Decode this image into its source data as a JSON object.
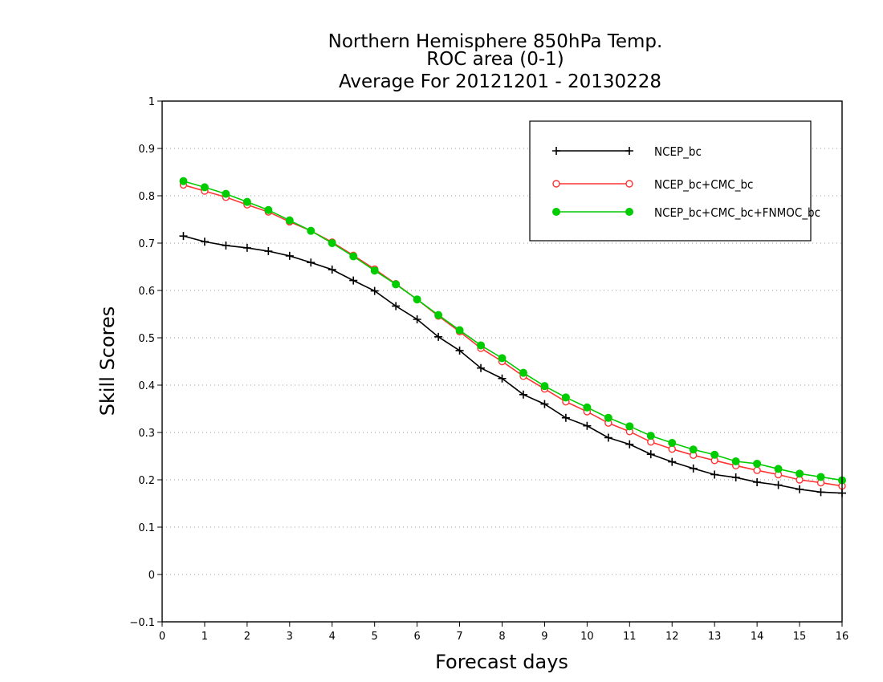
{
  "chart_data": {
    "type": "line",
    "title_lines": [
      "Northern Hemisphere 850hPa Temp.",
      "ROC area (0-1)",
      "Average For 20121201 - 20130228"
    ],
    "xlabel": "Forecast days",
    "ylabel": "Skill Scores",
    "xlim": [
      0,
      16
    ],
    "ylim": [
      -0.1,
      1
    ],
    "x_ticks": [
      "0",
      "1",
      "2",
      "3",
      "4",
      "5",
      "6",
      "7",
      "8",
      "9",
      "10",
      "11",
      "12",
      "13",
      "14",
      "15",
      "16"
    ],
    "y_ticks": [
      "−0.1",
      "0",
      "0.1",
      "0.2",
      "0.3",
      "0.4",
      "0.5",
      "0.6",
      "0.7",
      "0.8",
      "0.9",
      "1"
    ],
    "grid": "horizontal dotted",
    "legend_position": "top-right",
    "x": [
      0.5,
      1,
      1.5,
      2,
      2.5,
      3,
      3.5,
      4,
      4.5,
      5,
      5.5,
      6,
      6.5,
      7,
      7.5,
      8,
      8.5,
      9,
      9.5,
      10,
      10.5,
      11,
      11.5,
      12,
      12.5,
      13,
      13.5,
      14,
      14.5,
      15,
      15.5,
      16
    ],
    "series": [
      {
        "name": "NCEP_bc",
        "color": "#000000",
        "marker": "plus",
        "values": [
          0.715,
          0.703,
          0.695,
          0.69,
          0.683,
          0.673,
          0.659,
          0.644,
          0.621,
          0.599,
          0.567,
          0.539,
          0.502,
          0.473,
          0.436,
          0.414,
          0.38,
          0.36,
          0.331,
          0.314,
          0.289,
          0.275,
          0.254,
          0.238,
          0.224,
          0.211,
          0.205,
          0.195,
          0.189,
          0.18,
          0.174,
          0.172
        ]
      },
      {
        "name": "NCEP_bc+CMC_bc",
        "color": "#ff3333",
        "marker": "open-circle",
        "values": [
          0.823,
          0.81,
          0.797,
          0.781,
          0.766,
          0.745,
          0.726,
          0.702,
          0.674,
          0.645,
          0.614,
          0.581,
          0.546,
          0.513,
          0.478,
          0.45,
          0.419,
          0.392,
          0.365,
          0.344,
          0.32,
          0.302,
          0.28,
          0.265,
          0.252,
          0.241,
          0.23,
          0.22,
          0.211,
          0.2,
          0.194,
          0.187
        ]
      },
      {
        "name": "NCEP_bc+CMC_bc+FNMOC_bc",
        "color": "#00cc00",
        "marker": "filled-circle",
        "values": [
          0.831,
          0.818,
          0.804,
          0.787,
          0.77,
          0.748,
          0.726,
          0.7,
          0.672,
          0.642,
          0.613,
          0.581,
          0.548,
          0.516,
          0.484,
          0.457,
          0.426,
          0.398,
          0.374,
          0.353,
          0.331,
          0.313,
          0.293,
          0.278,
          0.264,
          0.253,
          0.239,
          0.234,
          0.223,
          0.213,
          0.206,
          0.199
        ]
      }
    ]
  }
}
